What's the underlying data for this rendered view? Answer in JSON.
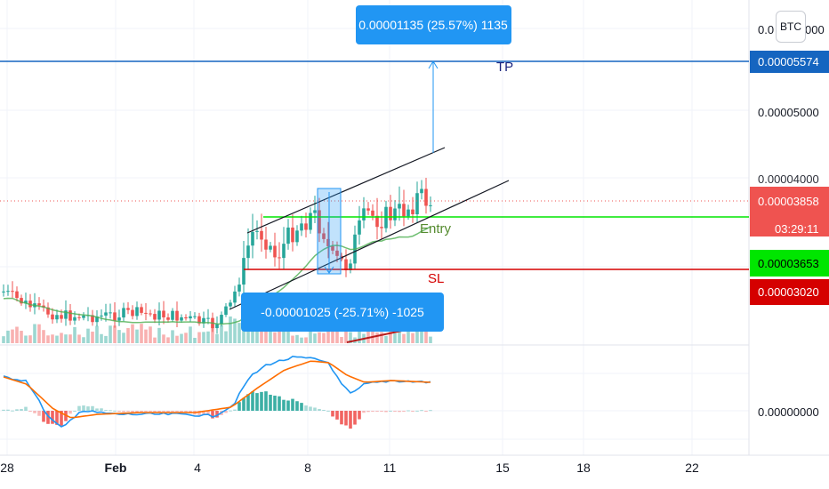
{
  "symbol_button": "BTC",
  "price_axis": {
    "top_partial_label": "0.0",
    "top_partial_suffix": "000",
    "tick_labels": [
      "0.00005000",
      "0.00000000"
    ],
    "hidden_tick_label": "0.00004000"
  },
  "time_axis": {
    "labels": [
      "28",
      "Feb",
      "4",
      "8",
      "11",
      "15",
      "18",
      "22"
    ]
  },
  "price_tags": {
    "tp": {
      "text": "0.00005574",
      "color": "#1565c0"
    },
    "current": {
      "text": "0.00003858",
      "color": "#ef5350"
    },
    "countdown": {
      "text": "03:29:11",
      "color": "#ef5350"
    },
    "entry": {
      "text": "0.00003653",
      "color": "#00e600"
    },
    "sl": {
      "text": "0.00003020",
      "color": "#d50000"
    }
  },
  "annotations": {
    "long_measure": "0.00001135 (25.57%) 1135",
    "short_measure": "-0.00001025 (-25.71%) -1025",
    "tp_label": "TP",
    "entry_label": "Entry",
    "sl_label": "SL"
  },
  "colors": {
    "up": "#26a69a",
    "down": "#ef5350",
    "ma": "#4caf50",
    "macd": "#2196f3",
    "signal": "#ff6d00",
    "measure_box": "#2196f3"
  },
  "chart_data": {
    "type": "candlestick",
    "price_levels": {
      "tp": 5.574e-05,
      "entry": 3.653e-05,
      "sl": 3.02e-05,
      "current": 3.858e-05
    },
    "price_ylim": [
      2.27e-05,
      6.1e-05
    ],
    "x_ticks": [
      "28",
      "Feb",
      "4",
      "8",
      "11",
      "15",
      "18",
      "22"
    ],
    "y_ticks": [
      5e-05,
      4e-05
    ],
    "measurements": [
      {
        "change": 1.135e-05,
        "percent": 25.57,
        "bars": 1135,
        "direction": "up"
      },
      {
        "change": -1.025e-05,
        "percent": -25.71,
        "bars": -1025,
        "direction": "down"
      }
    ],
    "indicators": [
      "volume",
      "moving average",
      "MACD"
    ],
    "grid": true
  }
}
